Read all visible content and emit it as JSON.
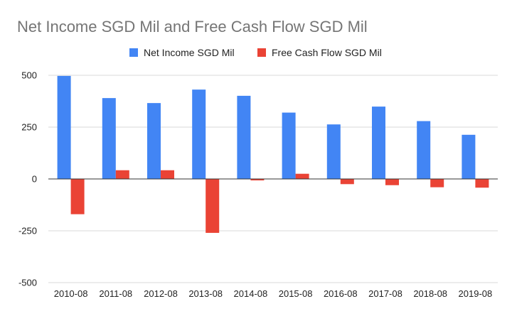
{
  "chart_data": {
    "type": "bar",
    "title": "Net Income SGD Mil and Free Cash Flow SGD Mil",
    "xlabel": "",
    "ylabel": "",
    "categories": [
      "2010-08",
      "2011-08",
      "2012-08",
      "2013-08",
      "2014-08",
      "2015-08",
      "2016-08",
      "2017-08",
      "2018-08",
      "2019-08"
    ],
    "series": [
      {
        "name": "Net Income SGD Mil",
        "color": "#4285f4",
        "values": [
          497,
          390,
          366,
          431,
          401,
          320,
          263,
          349,
          279,
          213
        ]
      },
      {
        "name": "Free Cash Flow SGD Mil",
        "color": "#ea4335",
        "values": [
          -170,
          42,
          42,
          -260,
          -7,
          25,
          -25,
          -30,
          -40,
          -42
        ]
      }
    ],
    "ylim": [
      -500,
      500
    ],
    "yticks": [
      500,
      250,
      0,
      -250,
      -500
    ],
    "ytick_labels": [
      "500",
      "250",
      "0",
      "-250",
      "-500"
    ],
    "grid": true,
    "legend_position": "top"
  }
}
